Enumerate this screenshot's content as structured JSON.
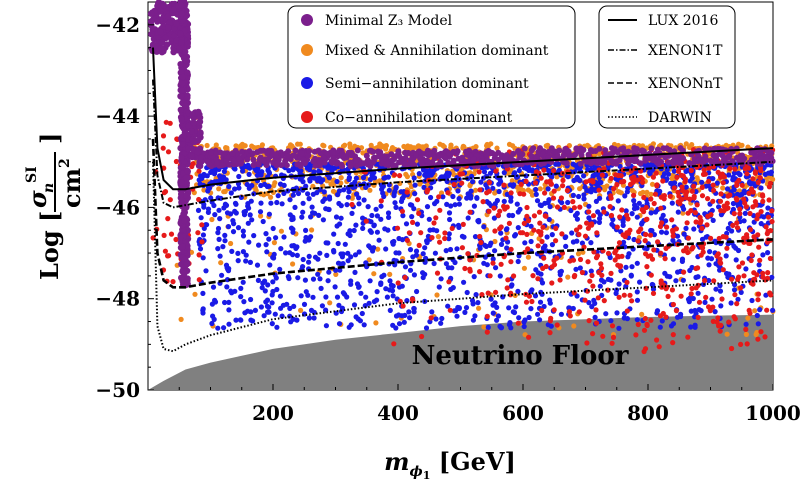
{
  "chart_data": {
    "type": "scatter",
    "title": "",
    "xlabel": "m_φ1 [GeV]",
    "ylabel_parts": {
      "prefix": "Log [",
      "numerator": "σn",
      "superscript": "SI",
      "denominator": "cm2",
      "suffix": "]"
    },
    "xlim": [
      0,
      1000
    ],
    "ylim": [
      -50,
      -41.5
    ],
    "x_ticks": [
      200,
      400,
      600,
      800,
      1000
    ],
    "y_ticks": [
      -42,
      -44,
      -46,
      -48,
      -50
    ],
    "x_tick_labels": [
      "200",
      "400",
      "600",
      "800",
      "1000"
    ],
    "y_tick_labels": [
      "−42",
      "−44",
      "−46",
      "−48",
      "−50"
    ],
    "floor_label": "Neutrino Floor",
    "neutrino_floor": {
      "x": [
        0,
        25,
        60,
        100,
        150,
        200,
        300,
        400,
        500,
        600,
        700,
        800,
        900,
        1000
      ],
      "y": [
        -50,
        -49.8,
        -49.55,
        -49.4,
        -49.25,
        -49.1,
        -48.9,
        -48.75,
        -48.6,
        -48.5,
        -48.45,
        -48.4,
        -48.37,
        -48.35
      ]
    },
    "series": [
      {
        "name": "Minimal Z3 Model",
        "label": "Minimal Z₃ Model",
        "color": "#7b1f8c",
        "description": "narrow band near m_φ1 ≈ 62 GeV plus plateau around -44.8"
      },
      {
        "name": "Mixed & Annihilation dominant",
        "label": "Mixed & Annihilation dominant",
        "color": "#f08a1f",
        "description": "band between -45.5 and -44.5"
      },
      {
        "name": "Semi-annihilation dominant",
        "label": "Semi−annihilation dominant",
        "color": "#1a1ae6",
        "description": "broad scatter between -48.5 and -45"
      },
      {
        "name": "Co-annihilation dominant",
        "label": "Co−annihilation dominant",
        "color": "#e61a1a",
        "description": "scatter mostly at high mass between -49.5 and -44"
      }
    ],
    "limits": [
      {
        "name": "LUX 2016",
        "style": "solid",
        "x": [
          8,
          15,
          25,
          40,
          60,
          100,
          200,
          400,
          600,
          800,
          1000
        ],
        "y": [
          -42.5,
          -44.7,
          -45.4,
          -45.6,
          -45.6,
          -45.5,
          -45.35,
          -45.15,
          -45.0,
          -44.85,
          -44.7
        ]
      },
      {
        "name": "XENON1T",
        "style": "dashdot",
        "x": [
          8,
          15,
          25,
          40,
          60,
          100,
          200,
          400,
          600,
          800,
          1000
        ],
        "y": [
          -43.2,
          -45.3,
          -45.9,
          -46.0,
          -45.95,
          -45.85,
          -45.65,
          -45.45,
          -45.3,
          -45.15,
          -45.0
        ]
      },
      {
        "name": "XENONnT",
        "style": "dashed",
        "x": [
          8,
          15,
          25,
          40,
          60,
          100,
          200,
          400,
          600,
          800,
          1000
        ],
        "y": [
          -44.5,
          -47.0,
          -47.6,
          -47.75,
          -47.75,
          -47.65,
          -47.45,
          -47.2,
          -47.0,
          -46.85,
          -46.7
        ]
      },
      {
        "name": "DARWIN",
        "style": "dotted",
        "x": [
          8,
          15,
          25,
          40,
          60,
          100,
          200,
          400,
          600,
          800,
          1000
        ],
        "y": [
          -45.0,
          -48.6,
          -49.1,
          -49.15,
          -49.0,
          -48.8,
          -48.45,
          -48.1,
          -47.9,
          -47.75,
          -47.6
        ]
      }
    ],
    "legend_position": "top"
  }
}
